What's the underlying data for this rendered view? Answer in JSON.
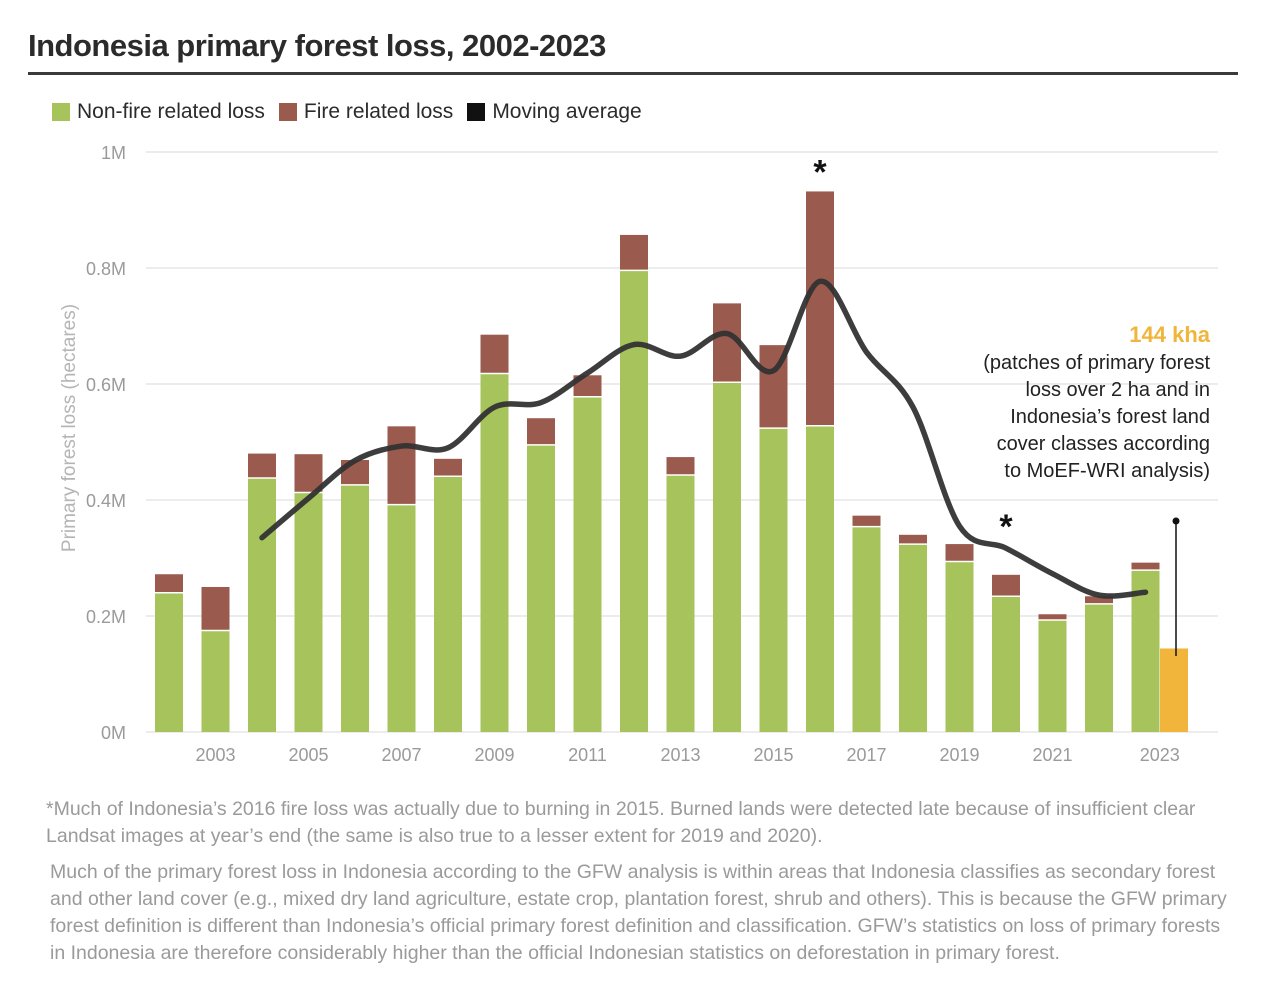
{
  "title": "Indonesia primary forest loss, 2002-2023",
  "legend": {
    "non_fire": "Non-fire related loss",
    "fire": "Fire related loss",
    "moving_avg": "Moving average"
  },
  "colors": {
    "non_fire": "#a6c35c",
    "fire": "#9a5a4e",
    "moving_avg": "#333333",
    "highlight": "#f0b53a",
    "grid": "#e6e6e6",
    "axis_text": "#9a9a9a"
  },
  "chart_data": {
    "type": "bar",
    "title": "Indonesia primary forest loss, 2002-2023",
    "ylabel": "Primary forest loss (hectares)",
    "xlabel": "",
    "ylim": [
      0,
      1000000
    ],
    "y_ticks": [
      0,
      200000,
      400000,
      600000,
      800000,
      1000000
    ],
    "y_tick_labels": [
      "0M",
      "0.2M",
      "0.4M",
      "0.6M",
      "0.8M",
      "1M"
    ],
    "categories": [
      2002,
      2003,
      2004,
      2005,
      2006,
      2007,
      2008,
      2009,
      2010,
      2011,
      2012,
      2013,
      2014,
      2015,
      2016,
      2017,
      2018,
      2019,
      2020,
      2021,
      2022,
      2023
    ],
    "x_tick_labels": [
      "2003",
      "2005",
      "2007",
      "2009",
      "2011",
      "2013",
      "2015",
      "2017",
      "2019",
      "2021",
      "2023"
    ],
    "series": [
      {
        "name": "Non-fire related loss",
        "stack": "loss",
        "values": [
          240000,
          175000,
          438000,
          413000,
          426000,
          392000,
          441000,
          618000,
          495000,
          578000,
          796000,
          443000,
          603000,
          524000,
          528000,
          354000,
          324000,
          294000,
          234000,
          193000,
          221000,
          279000
        ]
      },
      {
        "name": "Fire related loss",
        "stack": "loss",
        "values": [
          32000,
          75000,
          42000,
          66000,
          43000,
          135000,
          30000,
          67000,
          46000,
          37000,
          61000,
          31000,
          136000,
          143000,
          404000,
          19000,
          16000,
          30000,
          37000,
          10000,
          13000,
          13000
        ]
      },
      {
        "name": "Moving average",
        "type": "line",
        "x": [
          2004,
          2005,
          2006,
          2007,
          2008,
          2009,
          2010,
          2011,
          2012,
          2013,
          2014,
          2015,
          2016,
          2017,
          2018,
          2019,
          2020,
          2021,
          2022,
          2023
        ],
        "values": [
          335000,
          403000,
          468000,
          493000,
          490000,
          560000,
          568000,
          619000,
          668000,
          648000,
          687000,
          623000,
          777000,
          655000,
          560000,
          355000,
          317000,
          273000,
          236000,
          241000
        ]
      }
    ],
    "highlight_bar": {
      "year": 2023,
      "value": 144000,
      "label": "144 kha"
    },
    "markers": [
      {
        "year": 2016,
        "text": "*"
      },
      {
        "year": 2020,
        "text": "*"
      }
    ]
  },
  "annotation": {
    "value": "144 kha",
    "text": "(patches of primary forest loss over 2 ha and in Indonesia’s forest land cover classes according to MoEF-WRI analysis)"
  },
  "footnotes": {
    "note1": "*Much of Indonesia’s 2016 fire loss was actually due to burning in 2015. Burned lands were detected late because of insufficient clear Landsat images at year’s end (the same is also true to a lesser extent for 2019 and 2020).",
    "note2": "Much of the primary forest loss in Indonesia according to the GFW analysis is within areas that Indonesia classifies as secondary forest and other land cover (e.g., mixed dry land agriculture, estate crop, plantation forest, shrub and others). This is because the GFW primary forest definition is different than Indonesia’s official primary forest definition and classification. GFW’s statistics on loss of primary forests in Indonesia are therefore considerably higher than the official Indonesian statistics on deforestation in primary forest."
  }
}
